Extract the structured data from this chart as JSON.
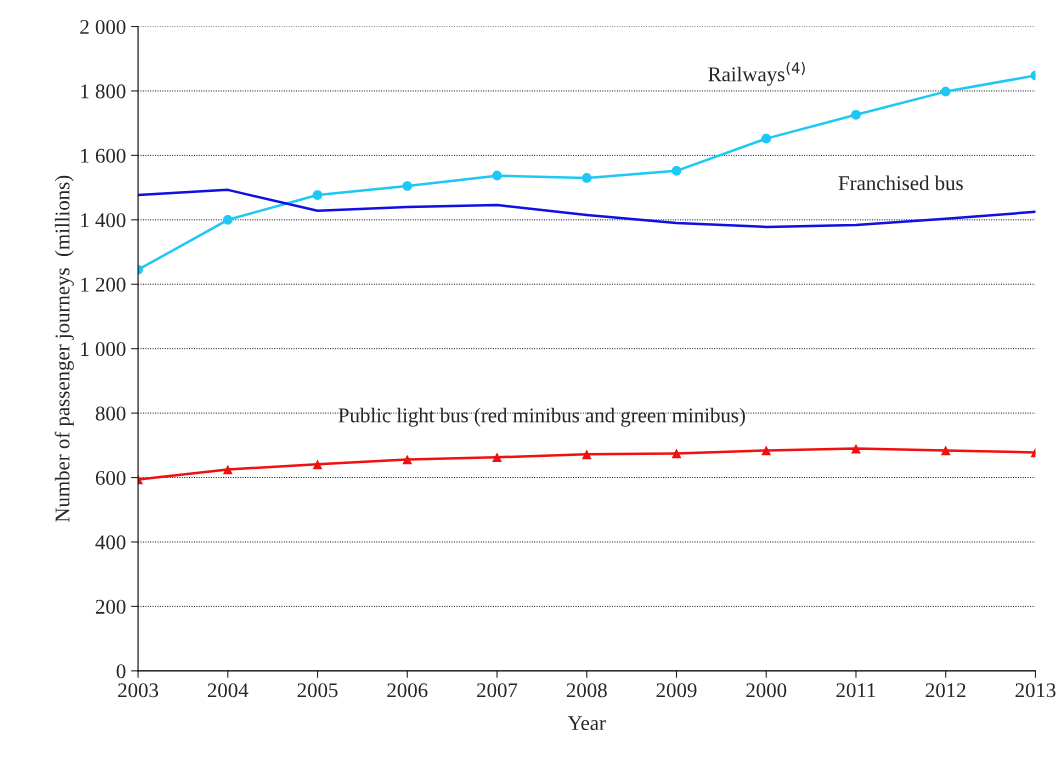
{
  "chart_data": {
    "type": "line",
    "xlabel": "Year",
    "ylabel": "Number of passenger journeys  (millions)",
    "categories": [
      "2003",
      "2004",
      "2005",
      "2006",
      "2007",
      "2008",
      "2009",
      "2000",
      "2011",
      "2012",
      "2013"
    ],
    "series": [
      {
        "name": "Railways$^{(4)}$",
        "color": "#1ec8f5",
        "marker": "circle",
        "values": [
          1245,
          1400,
          1477,
          1505,
          1537,
          1530,
          1552,
          1652,
          1726,
          1798,
          1848
        ]
      },
      {
        "name": "Franchised bus",
        "color": "#1010e0",
        "marker": "none",
        "values": [
          1477,
          1493,
          1428,
          1440,
          1446,
          1415,
          1390,
          1378,
          1384,
          1403,
          1425
        ]
      },
      {
        "name": "Public light bus (red minibus and green minibus)",
        "color": "#f01010",
        "marker": "triangle",
        "values": [
          594,
          625,
          641,
          656,
          663,
          672,
          675,
          684,
          690,
          684,
          678
        ]
      }
    ],
    "ylim": [
      0,
      2000
    ],
    "yticks": [
      0,
      200,
      400,
      600,
      800,
      {
        "value": 1000,
        "label": "1 000"
      },
      {
        "value": 1200,
        "label": "1 200"
      },
      {
        "value": 1400,
        "label": "1 400"
      },
      {
        "value": 1600,
        "label": "1 600"
      },
      {
        "value": 1800,
        "label": "1 800"
      },
      {
        "value": 2000,
        "label": "2 000"
      }
    ],
    "grid": "y",
    "legend": false
  }
}
